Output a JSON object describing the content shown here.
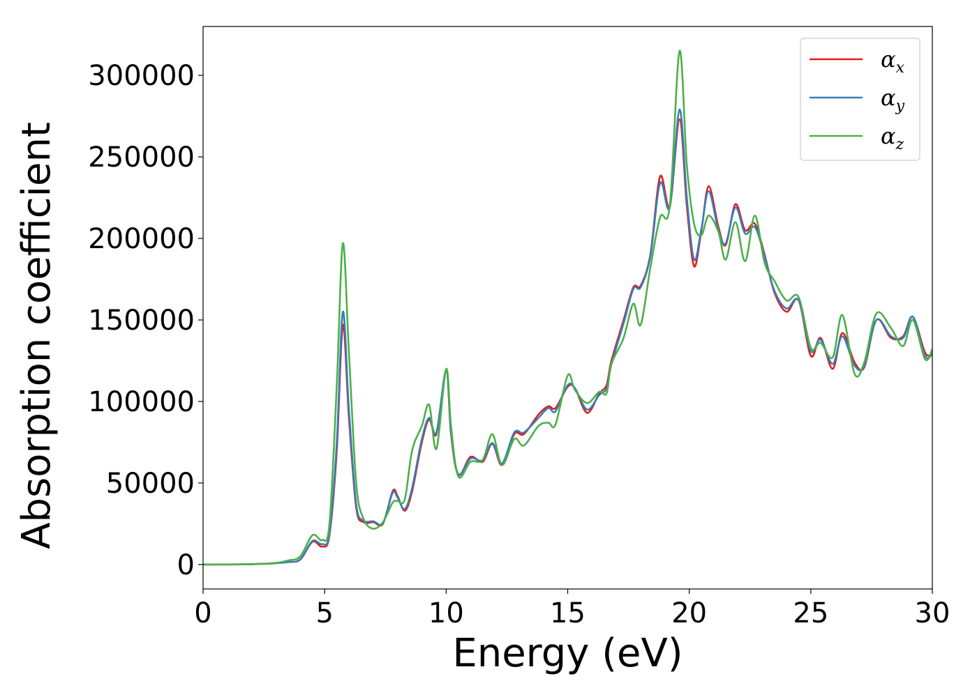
{
  "chart_data": {
    "type": "line",
    "title": "",
    "xlabel": "Energy (eV)",
    "ylabel": "Absorption coefficient",
    "xlim": [
      0,
      30
    ],
    "ylim": [
      -15000,
      330000
    ],
    "xticks": [
      0,
      5,
      10,
      15,
      20,
      25,
      30
    ],
    "yticks": [
      0,
      50000,
      100000,
      150000,
      200000,
      250000,
      300000
    ],
    "grid": false,
    "legend_position": "top-right",
    "series": [
      {
        "name": "αx",
        "symbol": "α",
        "subscript": "x",
        "color": "#e41a1c",
        "points": [
          [
            0,
            0
          ],
          [
            2,
            200
          ],
          [
            3,
            800
          ],
          [
            3.5,
            1500
          ],
          [
            4,
            3000
          ],
          [
            4.5,
            14000
          ],
          [
            4.9,
            11000
          ],
          [
            5.2,
            18000
          ],
          [
            5.5,
            70000
          ],
          [
            5.75,
            147000
          ],
          [
            6.0,
            90000
          ],
          [
            6.3,
            35000
          ],
          [
            6.6,
            26000
          ],
          [
            7.0,
            26000
          ],
          [
            7.4,
            25000
          ],
          [
            7.8,
            45000
          ],
          [
            8.0,
            42000
          ],
          [
            8.3,
            33000
          ],
          [
            8.6,
            45000
          ],
          [
            9.0,
            75000
          ],
          [
            9.3,
            89000
          ],
          [
            9.6,
            80000
          ],
          [
            10.0,
            119000
          ],
          [
            10.2,
            80000
          ],
          [
            10.5,
            55000
          ],
          [
            11.0,
            66000
          ],
          [
            11.5,
            63000
          ],
          [
            11.9,
            74000
          ],
          [
            12.3,
            61000
          ],
          [
            12.8,
            80000
          ],
          [
            13.2,
            80000
          ],
          [
            13.8,
            92000
          ],
          [
            14.2,
            97000
          ],
          [
            14.5,
            96000
          ],
          [
            15.0,
            109000
          ],
          [
            15.3,
            108000
          ],
          [
            15.8,
            93000
          ],
          [
            16.3,
            105000
          ],
          [
            16.6,
            110000
          ],
          [
            16.8,
            125000
          ],
          [
            17.3,
            150000
          ],
          [
            17.7,
            170000
          ],
          [
            18.0,
            171000
          ],
          [
            18.4,
            190000
          ],
          [
            18.8,
            238000
          ],
          [
            19.2,
            220000
          ],
          [
            19.6,
            273000
          ],
          [
            19.9,
            220000
          ],
          [
            20.2,
            183000
          ],
          [
            20.5,
            205000
          ],
          [
            20.8,
            232000
          ],
          [
            21.2,
            207000
          ],
          [
            21.5,
            196000
          ],
          [
            21.9,
            221000
          ],
          [
            22.3,
            205000
          ],
          [
            22.7,
            209000
          ],
          [
            23.1,
            190000
          ],
          [
            23.5,
            167000
          ],
          [
            24.0,
            155000
          ],
          [
            24.5,
            162000
          ],
          [
            25.0,
            128000
          ],
          [
            25.4,
            139000
          ],
          [
            25.9,
            120000
          ],
          [
            26.3,
            142000
          ],
          [
            26.8,
            124000
          ],
          [
            27.2,
            121000
          ],
          [
            27.7,
            150000
          ],
          [
            28.3,
            139000
          ],
          [
            28.8,
            140000
          ],
          [
            29.2,
            152000
          ],
          [
            29.7,
            130000
          ],
          [
            30.0,
            129000
          ]
        ]
      },
      {
        "name": "αy",
        "symbol": "α",
        "subscript": "y",
        "color": "#377eb8",
        "points": [
          [
            0,
            0
          ],
          [
            2,
            200
          ],
          [
            3,
            800
          ],
          [
            3.5,
            1500
          ],
          [
            4,
            3200
          ],
          [
            4.5,
            14500
          ],
          [
            4.9,
            12500
          ],
          [
            5.2,
            19000
          ],
          [
            5.5,
            75000
          ],
          [
            5.75,
            155000
          ],
          [
            6.0,
            95000
          ],
          [
            6.3,
            37000
          ],
          [
            6.6,
            27000
          ],
          [
            7.0,
            26500
          ],
          [
            7.4,
            25500
          ],
          [
            7.8,
            44000
          ],
          [
            8.0,
            41000
          ],
          [
            8.3,
            34000
          ],
          [
            8.6,
            47000
          ],
          [
            9.0,
            77000
          ],
          [
            9.3,
            90000
          ],
          [
            9.6,
            81000
          ],
          [
            10.0,
            119000
          ],
          [
            10.2,
            81000
          ],
          [
            10.5,
            55500
          ],
          [
            11.0,
            65000
          ],
          [
            11.5,
            64000
          ],
          [
            11.9,
            74500
          ],
          [
            12.3,
            62000
          ],
          [
            12.8,
            81000
          ],
          [
            13.2,
            81000
          ],
          [
            13.8,
            90000
          ],
          [
            14.2,
            96000
          ],
          [
            14.5,
            94000
          ],
          [
            15.0,
            110000
          ],
          [
            15.3,
            108000
          ],
          [
            15.8,
            95000
          ],
          [
            16.3,
            104000
          ],
          [
            16.6,
            108000
          ],
          [
            16.8,
            123000
          ],
          [
            17.3,
            148000
          ],
          [
            17.7,
            169000
          ],
          [
            18.0,
            170000
          ],
          [
            18.4,
            189000
          ],
          [
            18.8,
            234000
          ],
          [
            19.2,
            219000
          ],
          [
            19.6,
            279000
          ],
          [
            19.9,
            225000
          ],
          [
            20.2,
            187000
          ],
          [
            20.5,
            206000
          ],
          [
            20.8,
            229000
          ],
          [
            21.2,
            205000
          ],
          [
            21.5,
            197000
          ],
          [
            21.9,
            219000
          ],
          [
            22.3,
            203000
          ],
          [
            22.7,
            207000
          ],
          [
            23.1,
            189000
          ],
          [
            23.5,
            168000
          ],
          [
            24.0,
            157000
          ],
          [
            24.5,
            162000
          ],
          [
            25.0,
            131000
          ],
          [
            25.4,
            138000
          ],
          [
            25.9,
            123000
          ],
          [
            26.3,
            140000
          ],
          [
            26.8,
            122000
          ],
          [
            27.2,
            122000
          ],
          [
            27.7,
            150000
          ],
          [
            28.3,
            140000
          ],
          [
            28.8,
            139000
          ],
          [
            29.2,
            152000
          ],
          [
            29.7,
            128000
          ],
          [
            30.0,
            129000
          ]
        ]
      },
      {
        "name": "αz",
        "symbol": "α",
        "subscript": "z",
        "color": "#4daf4a",
        "points": [
          [
            0,
            0
          ],
          [
            2,
            200
          ],
          [
            3,
            1000
          ],
          [
            3.5,
            2500
          ],
          [
            4,
            5000
          ],
          [
            4.5,
            18000
          ],
          [
            4.9,
            15000
          ],
          [
            5.2,
            25000
          ],
          [
            5.5,
            110000
          ],
          [
            5.75,
            197000
          ],
          [
            6.0,
            130000
          ],
          [
            6.3,
            50000
          ],
          [
            6.6,
            28000
          ],
          [
            7.0,
            22000
          ],
          [
            7.4,
            26000
          ],
          [
            7.8,
            38000
          ],
          [
            8.0,
            39000
          ],
          [
            8.3,
            40000
          ],
          [
            8.6,
            70000
          ],
          [
            9.0,
            85000
          ],
          [
            9.3,
            98000
          ],
          [
            9.6,
            71000
          ],
          [
            10.0,
            120000
          ],
          [
            10.2,
            85000
          ],
          [
            10.5,
            54000
          ],
          [
            11.0,
            63000
          ],
          [
            11.5,
            64000
          ],
          [
            11.9,
            80000
          ],
          [
            12.3,
            61000
          ],
          [
            12.8,
            77000
          ],
          [
            13.2,
            73000
          ],
          [
            13.8,
            85000
          ],
          [
            14.2,
            87000
          ],
          [
            14.5,
            86000
          ],
          [
            15.0,
            116000
          ],
          [
            15.3,
            107000
          ],
          [
            15.8,
            99000
          ],
          [
            16.3,
            106000
          ],
          [
            16.6,
            105000
          ],
          [
            16.8,
            123000
          ],
          [
            17.3,
            139000
          ],
          [
            17.7,
            160000
          ],
          [
            18.0,
            147000
          ],
          [
            18.4,
            182000
          ],
          [
            18.8,
            213000
          ],
          [
            19.2,
            220000
          ],
          [
            19.6,
            315000
          ],
          [
            19.9,
            245000
          ],
          [
            20.2,
            209000
          ],
          [
            20.5,
            202000
          ],
          [
            20.8,
            214000
          ],
          [
            21.2,
            204000
          ],
          [
            21.5,
            187000
          ],
          [
            21.9,
            210000
          ],
          [
            22.3,
            186000
          ],
          [
            22.7,
            214000
          ],
          [
            23.1,
            185000
          ],
          [
            23.5,
            174000
          ],
          [
            24.0,
            162000
          ],
          [
            24.5,
            164000
          ],
          [
            25.0,
            133000
          ],
          [
            25.4,
            136000
          ],
          [
            25.9,
            127000
          ],
          [
            26.3,
            153000
          ],
          [
            26.8,
            117000
          ],
          [
            27.2,
            124000
          ],
          [
            27.7,
            154000
          ],
          [
            28.3,
            145000
          ],
          [
            28.8,
            134000
          ],
          [
            29.2,
            150000
          ],
          [
            29.7,
            126000
          ],
          [
            30.0,
            132000
          ]
        ]
      }
    ]
  }
}
